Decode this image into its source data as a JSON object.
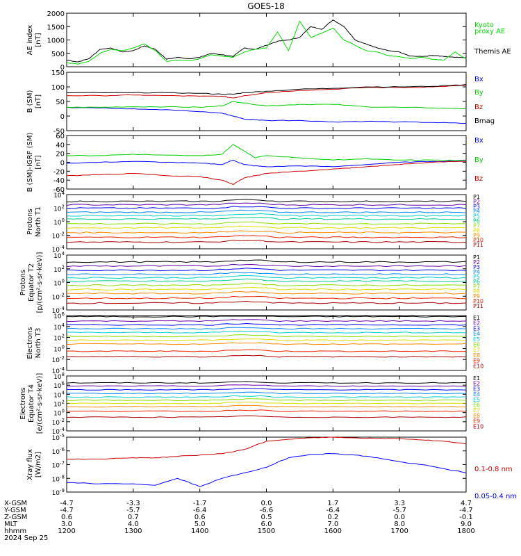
{
  "title": "GOES-18",
  "colors": {
    "axis": "#000000",
    "blue": "#0000ff",
    "green": "#00cc00",
    "red": "#cc0000",
    "black": "#000000",
    "lime": "#00dd00",
    "darkred": "#aa0000"
  },
  "chart_data": [
    {
      "type": "line",
      "panel": "ae",
      "ylabel": [
        "AE index",
        "[nT]"
      ],
      "yticks": [
        "2000",
        "1500",
        "1000",
        "500",
        "0"
      ],
      "ylim": [
        0,
        2000
      ],
      "x": [
        1200,
        1210,
        1220,
        1230,
        1240,
        1250,
        1300,
        1310,
        1320,
        1330,
        1340,
        1350,
        1400,
        1410,
        1420,
        1430,
        1440,
        1450,
        1500,
        1510,
        1520,
        1530,
        1540,
        1550,
        1600,
        1610,
        1620,
        1630,
        1640,
        1650,
        1700,
        1710,
        1720,
        1730,
        1740,
        1750,
        1800
      ],
      "series": [
        {
          "name": "Themis AE",
          "color": "#000000",
          "values": [
            250,
            180,
            300,
            650,
            700,
            550,
            600,
            780,
            650,
            280,
            350,
            300,
            350,
            500,
            450,
            380,
            700,
            650,
            800,
            950,
            1000,
            1100,
            1500,
            1400,
            1750,
            1500,
            1000,
            850,
            700,
            600,
            550,
            400,
            380,
            420,
            380,
            350,
            330
          ]
        },
        {
          "name": "Kyoto proxy AE",
          "color": "#00dd00",
          "values": [
            150,
            100,
            200,
            500,
            650,
            600,
            700,
            850,
            600,
            200,
            250,
            220,
            300,
            450,
            400,
            350,
            550,
            650,
            700,
            1300,
            600,
            1700,
            1100,
            1250,
            1450,
            1000,
            800,
            600,
            550,
            420,
            380,
            300,
            350,
            280,
            250,
            550,
            300
          ]
        }
      ],
      "legend": [
        {
          "text": "Kyoto",
          "color": "#00dd00"
        },
        {
          "text": "proxy AE",
          "color": "#00dd00"
        },
        {
          "text": "Themis AE",
          "color": "#000000"
        }
      ]
    },
    {
      "type": "line",
      "panel": "bsm",
      "ylabel": [
        "B (SM)",
        "[nT]"
      ],
      "yticks": [
        "150",
        "100",
        "50",
        "0",
        "-50"
      ],
      "ylim": [
        -50,
        150
      ],
      "x": [
        1200,
        1230,
        1300,
        1330,
        1400,
        1420,
        1430,
        1440,
        1500,
        1530,
        1600,
        1630,
        1700,
        1730,
        1800
      ],
      "series": [
        {
          "name": "Bx",
          "color": "#0000ff",
          "values": [
            30,
            28,
            25,
            22,
            15,
            10,
            0,
            -10,
            -15,
            -15,
            -20,
            -18,
            -20,
            -22,
            -25
          ]
        },
        {
          "name": "By",
          "color": "#00cc00",
          "values": [
            30,
            30,
            32,
            32,
            30,
            35,
            50,
            45,
            35,
            40,
            40,
            32,
            30,
            28,
            25
          ]
        },
        {
          "name": "Bz",
          "color": "#cc0000",
          "values": [
            70,
            70,
            72,
            70,
            68,
            68,
            62,
            70,
            80,
            88,
            92,
            98,
            98,
            100,
            105
          ]
        },
        {
          "name": "Bmag",
          "color": "#000000",
          "values": [
            80,
            80,
            80,
            80,
            78,
            75,
            75,
            80,
            85,
            92,
            95,
            100,
            100,
            102,
            108
          ]
        }
      ],
      "legend": [
        {
          "text": "Bx",
          "color": "#0000ff"
        },
        {
          "text": "By",
          "color": "#00cc00"
        },
        {
          "text": "Bz",
          "color": "#cc0000"
        },
        {
          "text": "Bmag",
          "color": "#000000"
        }
      ]
    },
    {
      "type": "line",
      "panel": "bigrf",
      "ylabel": [
        "B (SM)-IGRF (SM)",
        "[nT]"
      ],
      "yticks": [
        "60",
        "40",
        "20",
        "0",
        "-20",
        "-40",
        "-60"
      ],
      "ylim": [
        -60,
        60
      ],
      "x": [
        1200,
        1230,
        1300,
        1330,
        1400,
        1420,
        1430,
        1440,
        1450,
        1500,
        1530,
        1600,
        1630,
        1700,
        1730,
        1800
      ],
      "series": [
        {
          "name": "Bx",
          "color": "#0000ff",
          "values": [
            -2,
            0,
            2,
            0,
            -2,
            -5,
            5,
            -5,
            -8,
            -10,
            -8,
            -10,
            -5,
            0,
            2,
            3
          ]
        },
        {
          "name": "By",
          "color": "#00cc00",
          "values": [
            15,
            15,
            18,
            16,
            15,
            18,
            40,
            25,
            10,
            15,
            10,
            5,
            8,
            5,
            5,
            5
          ]
        },
        {
          "name": "Bz",
          "color": "#cc0000",
          "values": [
            -30,
            -28,
            -25,
            -30,
            -32,
            -40,
            -50,
            -35,
            -30,
            -25,
            -20,
            -15,
            -10,
            -5,
            0,
            2
          ]
        }
      ],
      "legend": [
        {
          "text": "Bx",
          "color": "#0000ff"
        },
        {
          "text": "By",
          "color": "#00cc00"
        },
        {
          "text": "Bz",
          "color": "#cc0000"
        }
      ]
    },
    {
      "type": "line",
      "panel": "pt1",
      "scale": "log",
      "ylabel": [
        "Protons",
        "North T1"
      ],
      "yticks": [
        "4",
        "2",
        "0",
        "-2",
        "-4"
      ],
      "ylim": [
        -4,
        4
      ],
      "x": [
        1200,
        1800
      ],
      "levels": [
        3.0,
        2.5,
        2.0,
        1.4,
        0.9,
        0.4,
        -0.3,
        -0.9,
        -1.6,
        -2.3,
        -3.0
      ],
      "legend": [
        {
          "text": "P1",
          "color": "#000000"
        },
        {
          "text": "P2",
          "color": "#6600aa"
        },
        {
          "text": "P3",
          "color": "#0000ff"
        },
        {
          "text": "P4",
          "color": "#0088ff"
        },
        {
          "text": "P5",
          "color": "#00cccc"
        },
        {
          "text": "P6",
          "color": "#00cc88"
        },
        {
          "text": "P7",
          "color": "#88dd00"
        },
        {
          "text": "P8",
          "color": "#dddd00"
        },
        {
          "text": "P9",
          "color": "#ff8800"
        },
        {
          "text": "P10",
          "color": "#ee2200"
        },
        {
          "text": "P11",
          "color": "#aa0000"
        }
      ]
    },
    {
      "type": "line",
      "panel": "pt2",
      "scale": "log",
      "ylabel": [
        "Protons",
        "Equator T2",
        "[p/(cm²-s-sr-keV)]"
      ],
      "yticks": [
        "4",
        "2",
        "0",
        "-2",
        "-4"
      ],
      "ylim": [
        -4,
        4
      ],
      "x": [
        1200,
        1800
      ],
      "levels": [
        3.0,
        2.4,
        1.8,
        1.2,
        0.7,
        0.2,
        -0.4,
        -1.0,
        -1.6,
        -2.3,
        -3.0
      ],
      "legend": [
        {
          "text": "P1",
          "color": "#000000"
        },
        {
          "text": "P2",
          "color": "#6600aa"
        },
        {
          "text": "P3",
          "color": "#0000ff"
        },
        {
          "text": "P4",
          "color": "#0088ff"
        },
        {
          "text": "P5",
          "color": "#00cccc"
        },
        {
          "text": "P6",
          "color": "#00cc88"
        },
        {
          "text": "P7",
          "color": "#88dd00"
        },
        {
          "text": "P8",
          "color": "#dddd00"
        },
        {
          "text": "P9",
          "color": "#ff8800"
        },
        {
          "text": "P10",
          "color": "#ee2200"
        },
        {
          "text": "P11",
          "color": "#aa0000"
        }
      ]
    },
    {
      "type": "line",
      "panel": "et3",
      "scale": "log",
      "ylabel": [
        "Electrons",
        "North T3"
      ],
      "yticks": [
        "6",
        "4",
        "2",
        "0",
        "-2",
        "-4"
      ],
      "ylim": [
        -4,
        6
      ],
      "x": [
        1200,
        1800
      ],
      "levels": [
        5.8,
        5.0,
        4.3,
        3.6,
        2.9,
        2.2,
        1.5,
        0.8,
        -0.5,
        -1.5
      ],
      "legend": [
        {
          "text": "E1",
          "color": "#000000"
        },
        {
          "text": "E2",
          "color": "#6600aa"
        },
        {
          "text": "E3",
          "color": "#0000ff"
        },
        {
          "text": "E4",
          "color": "#0088ff"
        },
        {
          "text": "E5",
          "color": "#00cccc"
        },
        {
          "text": "E6",
          "color": "#88dd00"
        },
        {
          "text": "E7",
          "color": "#dddd00"
        },
        {
          "text": "E8",
          "color": "#ff8800"
        },
        {
          "text": "E9",
          "color": "#ee2200"
        },
        {
          "text": "E10",
          "color": "#aa0000"
        }
      ]
    },
    {
      "type": "line",
      "panel": "et4",
      "scale": "log",
      "ylabel": [
        "Electrons",
        "Equator T4",
        "[e/(cm²-s-sr-keV)]"
      ],
      "yticks": [
        "8",
        "6",
        "4",
        "2",
        "0",
        "-2",
        "-4"
      ],
      "ylim": [
        -4,
        8
      ],
      "x": [
        1200,
        1800
      ],
      "levels": [
        6.5,
        5.8,
        5.0,
        4.2,
        3.4,
        2.7,
        2.0,
        1.3,
        0.3,
        -1.0
      ],
      "legend": [
        {
          "text": "E1",
          "color": "#000000"
        },
        {
          "text": "E2",
          "color": "#6600aa"
        },
        {
          "text": "E3",
          "color": "#0000ff"
        },
        {
          "text": "E4",
          "color": "#0088ff"
        },
        {
          "text": "E5",
          "color": "#00cccc"
        },
        {
          "text": "E6",
          "color": "#88dd00"
        },
        {
          "text": "E7",
          "color": "#dddd00"
        },
        {
          "text": "E8",
          "color": "#ff8800"
        },
        {
          "text": "E9",
          "color": "#ee2200"
        },
        {
          "text": "E10",
          "color": "#aa0000"
        }
      ]
    },
    {
      "type": "line",
      "panel": "xray",
      "scale": "log",
      "ylabel": [
        "Xray flux",
        "[W/m2]"
      ],
      "yticks": [
        "-5",
        "-6",
        "-7",
        "-8",
        "-9"
      ],
      "ylim": [
        -9,
        -5
      ],
      "x": [
        1200,
        1230,
        1300,
        1320,
        1340,
        1400,
        1420,
        1440,
        1500,
        1520,
        1540,
        1600,
        1620,
        1640,
        1700,
        1720,
        1740,
        1800
      ],
      "series": [
        {
          "name": "0.1-0.8 nm",
          "color": "#cc0000",
          "values": [
            -6.6,
            -6.6,
            -6.5,
            -6.5,
            -6.4,
            -6.3,
            -6.2,
            -5.9,
            -5.3,
            -5.15,
            -5.05,
            -5.0,
            -5.05,
            -5.1,
            -5.1,
            -5.2,
            -5.3,
            -5.5
          ]
        },
        {
          "name": "0.05-0.4 nm",
          "color": "#0000ff",
          "values": [
            -8.3,
            -8.4,
            -8.4,
            -8.5,
            -8.0,
            -8.6,
            -8.0,
            -7.6,
            -7.2,
            -6.5,
            -6.25,
            -6.2,
            -6.3,
            -6.5,
            -6.8,
            -7.0,
            -7.3,
            -7.6
          ]
        }
      ],
      "legend": [
        {
          "text": "0.1-0.8 nm",
          "color": "#cc0000"
        },
        {
          "text": "0.05-0.4 nm",
          "color": "#0000ff"
        }
      ]
    }
  ],
  "xaxis": {
    "rows": [
      {
        "label": "X-GSM",
        "values": [
          "-4.7",
          "-3.3",
          "-1.7",
          "0.0",
          "1.7",
          "3.3",
          "4.7"
        ]
      },
      {
        "label": "Y-GSM",
        "values": [
          "-4.7",
          "-5.7",
          "-6.4",
          "-6.6",
          "-6.4",
          "-5.7",
          "-4.7"
        ]
      },
      {
        "label": "Z-GSM",
        "values": [
          "0.6",
          "0.7",
          "0.6",
          "0.5",
          "0.2",
          "0.0",
          "-0.1"
        ]
      },
      {
        "label": "MLT",
        "values": [
          "3.0",
          "4.0",
          "5.0",
          "6.0",
          "7.0",
          "8.0",
          "9.0"
        ]
      },
      {
        "label": "hhmm",
        "values": [
          "1200",
          "1300",
          "1400",
          "1500",
          "1600",
          "1700",
          "1800"
        ]
      }
    ],
    "date": "2024 Sep 25"
  }
}
